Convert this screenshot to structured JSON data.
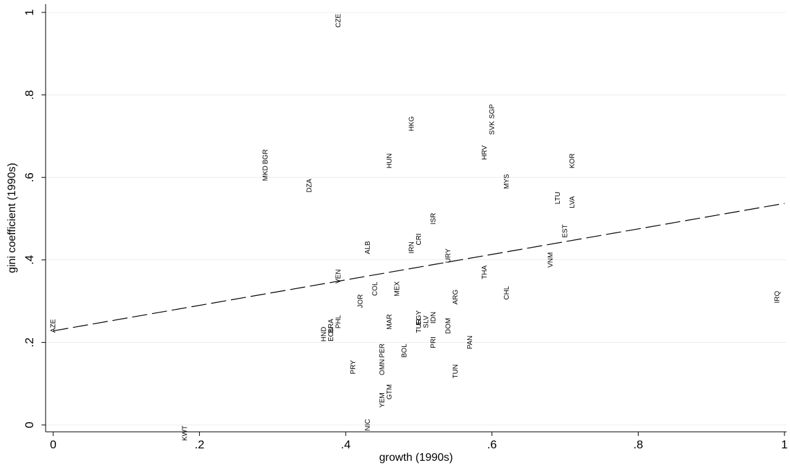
{
  "chart_data": {
    "type": "scatter",
    "xlabel": "growth (1990s)",
    "ylabel": "gini coefficient (1990s)",
    "xlim": [
      0,
      1
    ],
    "ylim": [
      0,
      1
    ],
    "xticks": [
      "0",
      ".2",
      ".4",
      ".6",
      ".8",
      "1"
    ],
    "yticks": [
      "0",
      ".2",
      ".4",
      ".6",
      ".8",
      "1"
    ],
    "grid": "horizontal",
    "fit_line": {
      "x": [
        0,
        1
      ],
      "y": [
        0.228,
        0.537
      ]
    },
    "points": [
      {
        "label": "CZE",
        "x": 0.39,
        "y": 0.98
      },
      {
        "label": "SGP",
        "x": 0.6,
        "y": 0.76
      },
      {
        "label": "HKG",
        "x": 0.49,
        "y": 0.73
      },
      {
        "label": "SVK",
        "x": 0.6,
        "y": 0.72
      },
      {
        "label": "BGR",
        "x": 0.29,
        "y": 0.65
      },
      {
        "label": "HRV",
        "x": 0.59,
        "y": 0.66
      },
      {
        "label": "HUN",
        "x": 0.46,
        "y": 0.64
      },
      {
        "label": "KOR",
        "x": 0.71,
        "y": 0.64
      },
      {
        "label": "MKD",
        "x": 0.29,
        "y": 0.61
      },
      {
        "label": "MYS",
        "x": 0.62,
        "y": 0.59
      },
      {
        "label": "DZA",
        "x": 0.35,
        "y": 0.58
      },
      {
        "label": "LTU",
        "x": 0.69,
        "y": 0.55
      },
      {
        "label": "LVA",
        "x": 0.71,
        "y": 0.54
      },
      {
        "label": "ISR",
        "x": 0.52,
        "y": 0.5
      },
      {
        "label": "EST",
        "x": 0.7,
        "y": 0.47
      },
      {
        "label": "CRI",
        "x": 0.5,
        "y": 0.45
      },
      {
        "label": "ALB",
        "x": 0.43,
        "y": 0.43
      },
      {
        "label": "IRN",
        "x": 0.49,
        "y": 0.43
      },
      {
        "label": "URY",
        "x": 0.54,
        "y": 0.41
      },
      {
        "label": "VNM",
        "x": 0.68,
        "y": 0.4
      },
      {
        "label": "THA",
        "x": 0.59,
        "y": 0.37
      },
      {
        "label": "VEN",
        "x": 0.39,
        "y": 0.36
      },
      {
        "label": "COL",
        "x": 0.44,
        "y": 0.33
      },
      {
        "label": "MEX",
        "x": 0.47,
        "y": 0.33
      },
      {
        "label": "CHL",
        "x": 0.62,
        "y": 0.32
      },
      {
        "label": "ARG",
        "x": 0.55,
        "y": 0.31
      },
      {
        "label": "JOR",
        "x": 0.42,
        "y": 0.3
      },
      {
        "label": "IRQ",
        "x": 0.99,
        "y": 0.31
      },
      {
        "label": "EGY",
        "x": 0.5,
        "y": 0.26
      },
      {
        "label": "PHL",
        "x": 0.39,
        "y": 0.25
      },
      {
        "label": "MAR",
        "x": 0.46,
        "y": 0.25
      },
      {
        "label": "SLV",
        "x": 0.51,
        "y": 0.25
      },
      {
        "label": "IDN",
        "x": 0.52,
        "y": 0.26
      },
      {
        "label": "BRA",
        "x": 0.38,
        "y": 0.24
      },
      {
        "label": "TUR",
        "x": 0.5,
        "y": 0.24
      },
      {
        "label": "DOM",
        "x": 0.54,
        "y": 0.24
      },
      {
        "label": "AZE",
        "x": 0.0,
        "y": 0.24
      },
      {
        "label": "HND",
        "x": 0.37,
        "y": 0.22
      },
      {
        "label": "ECU",
        "x": 0.38,
        "y": 0.22
      },
      {
        "label": "PRI",
        "x": 0.52,
        "y": 0.2
      },
      {
        "label": "PAN",
        "x": 0.57,
        "y": 0.2
      },
      {
        "label": "BOL",
        "x": 0.48,
        "y": 0.18
      },
      {
        "label": "PER",
        "x": 0.45,
        "y": 0.18
      },
      {
        "label": "OMN",
        "x": 0.45,
        "y": 0.14
      },
      {
        "label": "PRY",
        "x": 0.41,
        "y": 0.14
      },
      {
        "label": "TUN",
        "x": 0.55,
        "y": 0.13
      },
      {
        "label": "GTM",
        "x": 0.46,
        "y": 0.08
      },
      {
        "label": "YEM",
        "x": 0.45,
        "y": 0.06
      },
      {
        "label": "NIC",
        "x": 0.43,
        "y": 0.0
      },
      {
        "label": "KWT",
        "x": 0.18,
        "y": -0.02
      }
    ]
  }
}
